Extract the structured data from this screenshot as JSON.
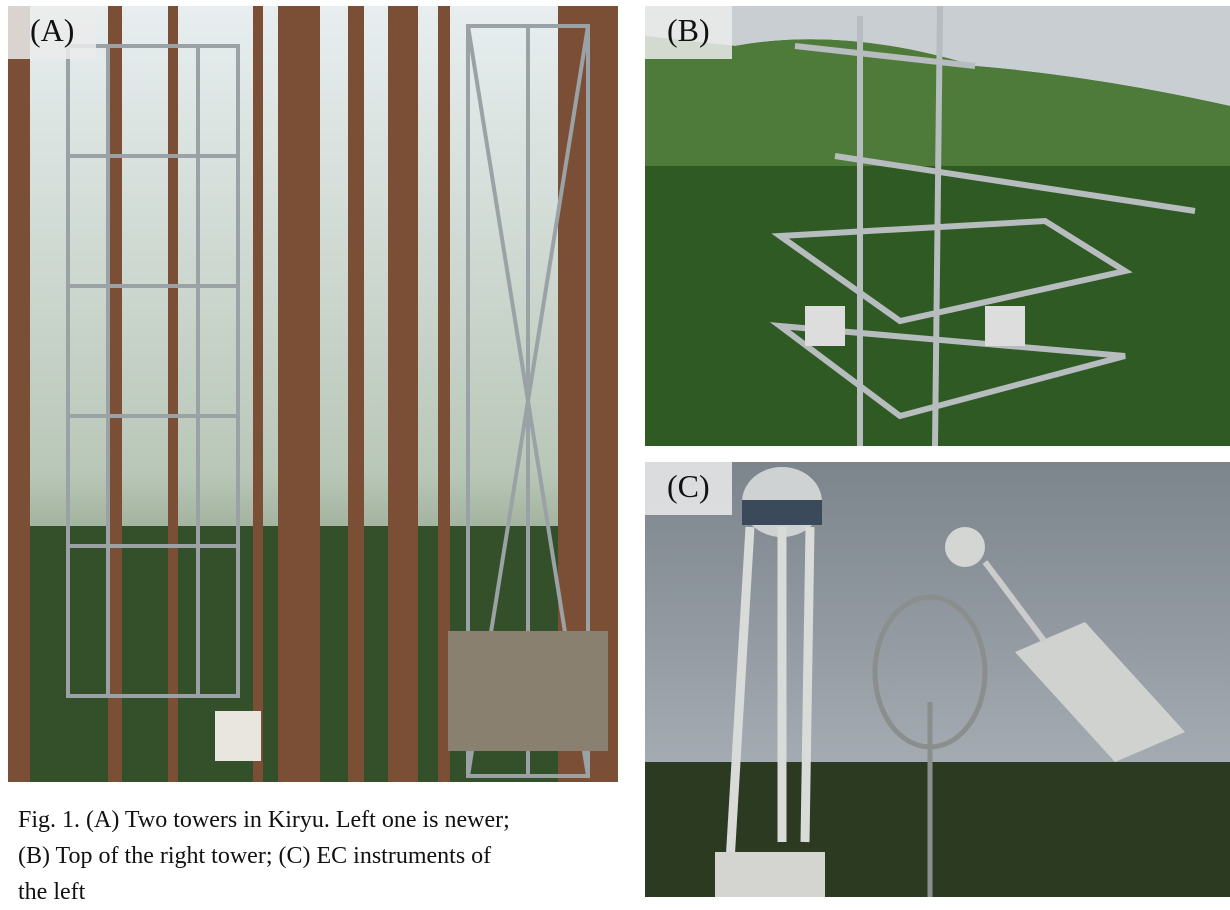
{
  "panels": [
    {
      "label": "(A)"
    },
    {
      "label": "(B)"
    },
    {
      "label": "(C)"
    }
  ],
  "caption": {
    "lines": [
      "Fig. 1. (A) Two towers in Kiryu. Left one is newer;",
      "(B) Top of the right tower; (C) EC instruments of",
      "the left"
    ]
  }
}
